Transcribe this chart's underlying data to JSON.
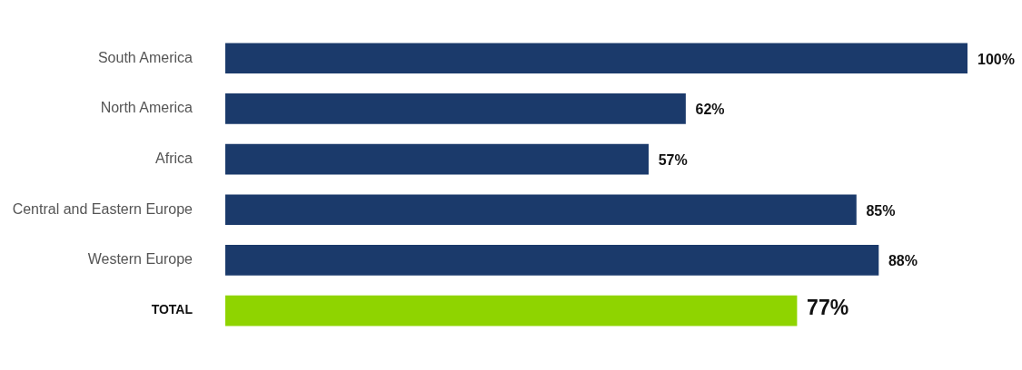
{
  "chart_data": {
    "type": "bar",
    "orientation": "horizontal",
    "categories": [
      "South America",
      "North America",
      "Africa",
      "Central and Eastern Europe",
      "Western Europe",
      "TOTAL"
    ],
    "values": [
      100,
      62,
      57,
      85,
      88,
      77
    ],
    "value_labels": [
      "100%",
      "62%",
      "57%",
      "85%",
      "88%",
      "77%"
    ],
    "colors": [
      "#1b3a6b",
      "#1b3a6b",
      "#1b3a6b",
      "#1b3a6b",
      "#1b3a6b",
      "#8fd400"
    ],
    "xlim": [
      0,
      100
    ],
    "legend": false,
    "tick_labels": "y"
  }
}
